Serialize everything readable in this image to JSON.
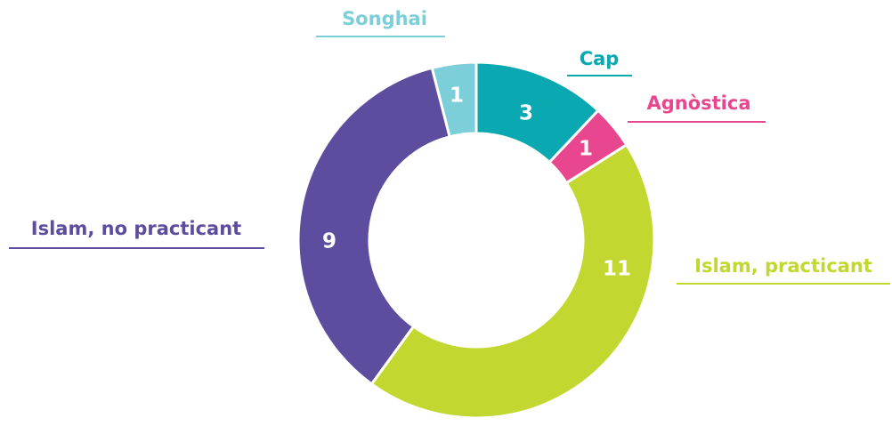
{
  "chart_data": {
    "type": "donut",
    "categories": [
      "Cap",
      "Agnòstica",
      "Islam, practicant",
      "Islam, no practicant",
      "Songhai"
    ],
    "values": [
      3,
      1,
      11,
      9,
      1
    ],
    "colors": [
      "#0aa8b0",
      "#e8478f",
      "#c3d731",
      "#5e4d9e",
      "#7ccfd8"
    ]
  }
}
